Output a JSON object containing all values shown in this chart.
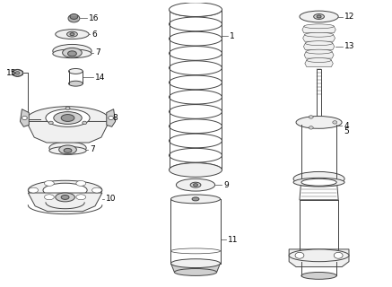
{
  "bg_color": "#ffffff",
  "line_color": "#444444",
  "fill_light": "#f0f0f0",
  "fill_mid": "#d0d0d0",
  "fill_dark": "#999999",
  "label_color": "#000000",
  "label_fs": 6.5
}
